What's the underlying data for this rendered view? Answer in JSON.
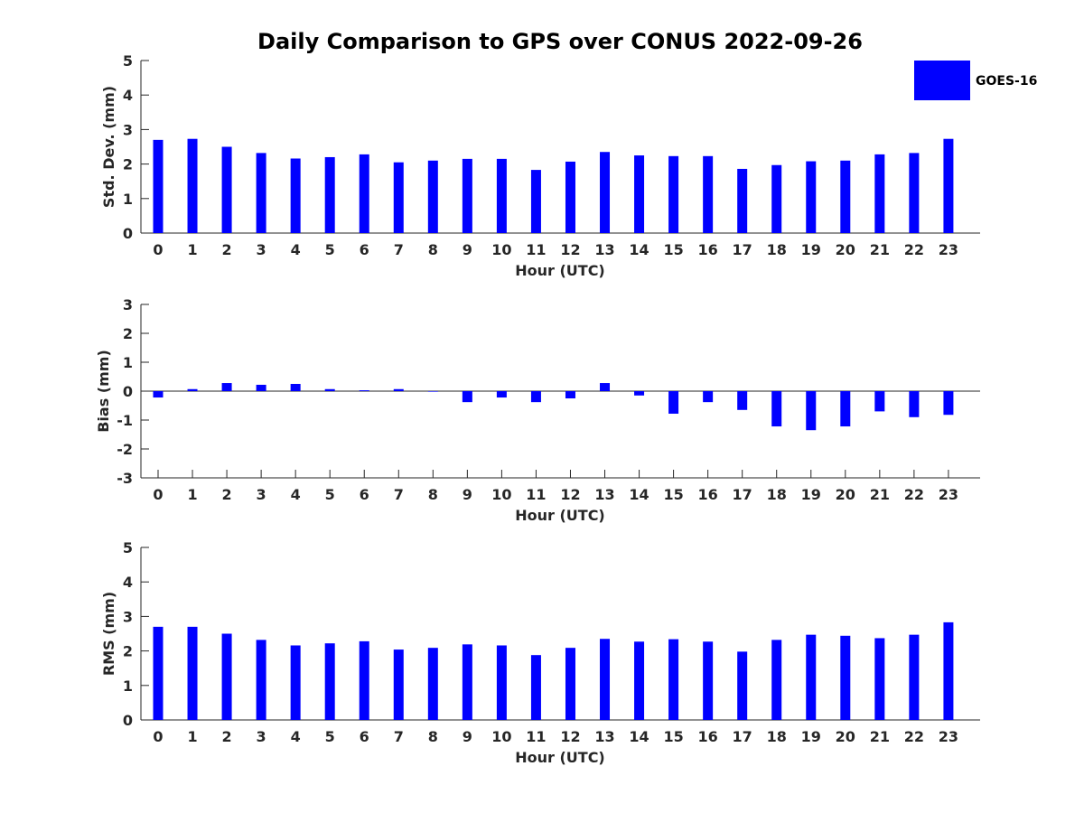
{
  "title": "Daily Comparison to GPS over CONUS 2022-09-26",
  "legend": {
    "label": "GOES-16",
    "color": "#0000ff",
    "position": "top-right"
  },
  "chart_data": [
    {
      "type": "bar",
      "xlabel": "Hour (UTC)",
      "ylabel": "Std. Dev. (mm)",
      "categories": [
        "0",
        "1",
        "2",
        "3",
        "4",
        "5",
        "6",
        "7",
        "8",
        "9",
        "10",
        "11",
        "12",
        "13",
        "14",
        "15",
        "16",
        "17",
        "18",
        "19",
        "20",
        "21",
        "22",
        "23"
      ],
      "series": [
        {
          "name": "GOES-16",
          "values": [
            2.7,
            2.73,
            2.5,
            2.32,
            2.16,
            2.2,
            2.28,
            2.05,
            2.1,
            2.15,
            2.15,
            1.83,
            2.07,
            2.35,
            2.25,
            2.23,
            2.23,
            1.86,
            1.97,
            2.08,
            2.1,
            2.28,
            2.32,
            2.73
          ]
        }
      ],
      "ylim": [
        0,
        5
      ],
      "yticks": [
        "0",
        "1",
        "2",
        "3",
        "4",
        "5"
      ],
      "grid": false
    },
    {
      "type": "bar",
      "xlabel": "Hour (UTC)",
      "ylabel": "Bias (mm)",
      "categories": [
        "0",
        "1",
        "2",
        "3",
        "4",
        "5",
        "6",
        "7",
        "8",
        "9",
        "10",
        "11",
        "12",
        "13",
        "14",
        "15",
        "16",
        "17",
        "18",
        "19",
        "20",
        "21",
        "22",
        "23"
      ],
      "series": [
        {
          "name": "GOES-16",
          "values": [
            -0.22,
            0.07,
            0.28,
            0.22,
            0.25,
            0.07,
            0.03,
            0.07,
            -0.02,
            -0.38,
            -0.22,
            -0.38,
            -0.25,
            0.28,
            -0.15,
            -0.78,
            -0.38,
            -0.65,
            -1.22,
            -1.35,
            -1.22,
            -0.7,
            -0.9,
            -0.82
          ]
        }
      ],
      "ylim": [
        -3,
        3
      ],
      "yticks": [
        "-3",
        "-2",
        "-1",
        "0",
        "1",
        "2",
        "3"
      ],
      "grid": false
    },
    {
      "type": "bar",
      "xlabel": "Hour (UTC)",
      "ylabel": "RMS (mm)",
      "categories": [
        "0",
        "1",
        "2",
        "3",
        "4",
        "5",
        "6",
        "7",
        "8",
        "9",
        "10",
        "11",
        "12",
        "13",
        "14",
        "15",
        "16",
        "17",
        "18",
        "19",
        "20",
        "21",
        "22",
        "23"
      ],
      "series": [
        {
          "name": "GOES-16",
          "values": [
            2.7,
            2.7,
            2.5,
            2.32,
            2.16,
            2.22,
            2.28,
            2.04,
            2.09,
            2.19,
            2.16,
            1.88,
            2.09,
            2.35,
            2.27,
            2.34,
            2.27,
            1.98,
            2.32,
            2.47,
            2.44,
            2.37,
            2.47,
            2.83
          ]
        }
      ],
      "ylim": [
        0,
        5
      ],
      "yticks": [
        "0",
        "1",
        "2",
        "3",
        "4",
        "5"
      ],
      "grid": false
    }
  ]
}
